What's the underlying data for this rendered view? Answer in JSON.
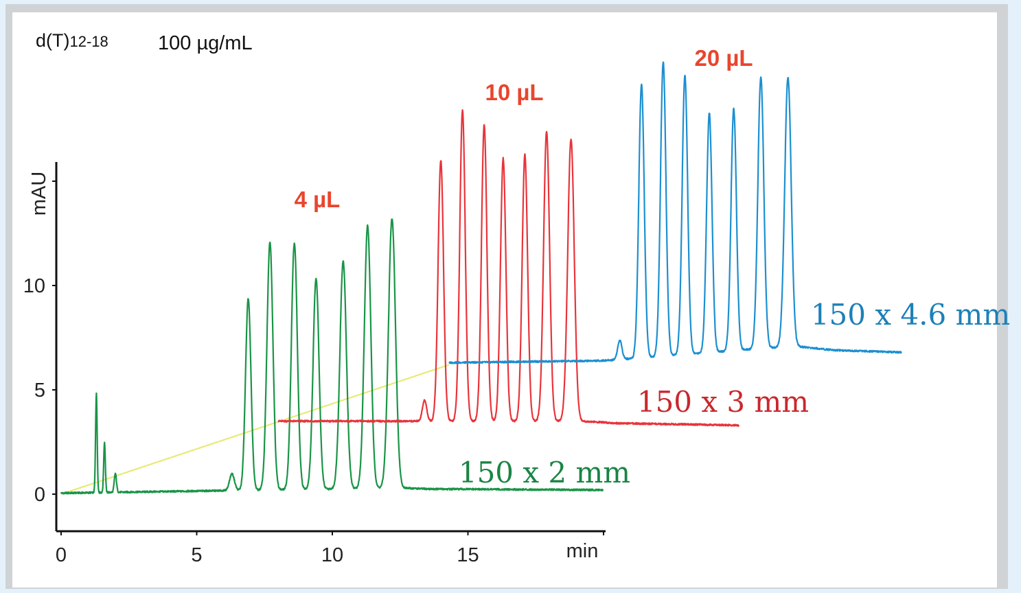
{
  "title": {
    "analyte": "d(T)",
    "subscript": "12-18",
    "concentration": "100 µg/mL"
  },
  "chart_data": {
    "type": "line",
    "xlabel": "min",
    "ylabel": "mAU",
    "xlim": [
      0,
      20
    ],
    "ylim": [
      -1.7,
      16
    ],
    "x_ticks": [
      0,
      5,
      10,
      15
    ],
    "x_tick_labels": [
      "0",
      "5",
      "10",
      "15"
    ],
    "y_ticks": [
      0,
      5,
      10
    ],
    "y_tick_labels": [
      "0",
      "5",
      "10"
    ],
    "grid": false,
    "series": [
      {
        "name": "150 x 2 mm",
        "injection": "4 µL",
        "color": "#1a9447",
        "x_offset_min": 0,
        "y_offset_mAU": 0,
        "peaks": [
          {
            "t": 1.3,
            "h": 4.8,
            "w": 0.03
          },
          {
            "t": 1.6,
            "h": 2.4,
            "w": 0.03
          },
          {
            "t": 2.0,
            "h": 0.9,
            "w": 0.04
          },
          {
            "t": 6.3,
            "h": 0.8,
            "w": 0.09
          },
          {
            "t": 6.9,
            "h": 9.2,
            "w": 0.1
          },
          {
            "t": 7.7,
            "h": 11.9,
            "w": 0.11
          },
          {
            "t": 8.6,
            "h": 11.8,
            "w": 0.11
          },
          {
            "t": 9.4,
            "h": 10.1,
            "w": 0.11
          },
          {
            "t": 10.4,
            "h": 10.9,
            "w": 0.12
          },
          {
            "t": 11.3,
            "h": 12.6,
            "w": 0.12
          },
          {
            "t": 12.2,
            "h": 12.9,
            "w": 0.13
          }
        ],
        "baseline": [
          [
            0,
            0.05
          ],
          [
            12.5,
            0.3
          ],
          [
            13.5,
            0.25
          ],
          [
            20,
            0.2
          ]
        ]
      },
      {
        "name": "150 x 3 mm",
        "injection": "10 µL",
        "color": "#e8343a",
        "x_offset_min": 8,
        "y_offset_mAU": 3.3,
        "peaks": [
          {
            "t": 13.4,
            "h": 1.0,
            "w": 0.08
          },
          {
            "t": 14.0,
            "h": 12.5,
            "w": 0.1
          },
          {
            "t": 14.8,
            "h": 14.9,
            "w": 0.1
          },
          {
            "t": 15.6,
            "h": 14.2,
            "w": 0.1
          },
          {
            "t": 16.3,
            "h": 12.6,
            "w": 0.1
          },
          {
            "t": 17.1,
            "h": 12.8,
            "w": 0.1
          },
          {
            "t": 17.9,
            "h": 13.9,
            "w": 0.11
          },
          {
            "t": 18.8,
            "h": 13.5,
            "w": 0.12
          }
        ],
        "baseline": [
          [
            8,
            3.5
          ],
          [
            13,
            3.5
          ],
          [
            19.2,
            3.5
          ],
          [
            20.5,
            3.4
          ],
          [
            25,
            3.3
          ]
        ]
      },
      {
        "name": "150 x 4.6 mm",
        "injection": "20 µL",
        "color": "#1c8fd0",
        "x_offset_min": 14.3,
        "y_offset_mAU": 6.3,
        "peaks": [
          {
            "t": 20.6,
            "h": 0.9,
            "w": 0.08
          },
          {
            "t": 21.4,
            "h": 13.1,
            "w": 0.1
          },
          {
            "t": 22.2,
            "h": 14.1,
            "w": 0.1
          },
          {
            "t": 23.0,
            "h": 13.4,
            "w": 0.1
          },
          {
            "t": 23.9,
            "h": 11.5,
            "w": 0.1
          },
          {
            "t": 24.8,
            "h": 11.6,
            "w": 0.1
          },
          {
            "t": 25.8,
            "h": 13.0,
            "w": 0.11
          },
          {
            "t": 26.8,
            "h": 12.9,
            "w": 0.12
          }
        ],
        "baseline": [
          [
            14.3,
            6.3
          ],
          [
            20,
            6.4
          ],
          [
            27,
            7.1
          ],
          [
            28.5,
            6.9
          ],
          [
            31,
            6.8
          ]
        ]
      }
    ],
    "gradient_line": {
      "color": "#e6e96a",
      "from": [
        0,
        0.0
      ],
      "to": [
        14.3,
        6.2
      ]
    }
  }
}
